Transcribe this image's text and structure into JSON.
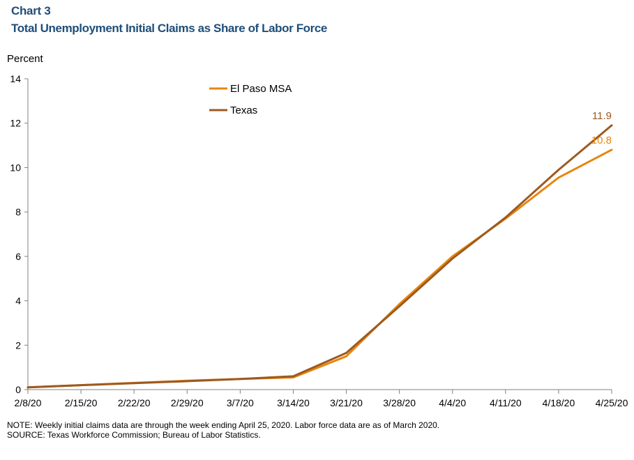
{
  "header": {
    "chart_number": "Chart 3",
    "title": "Total Unemployment Initial Claims as Share of Labor Force"
  },
  "notes": {
    "note": "NOTE: Weekly initial claims data are through the week ending April 25, 2020. Labor force data are as of March 2020.",
    "source": "SOURCE: Texas Workforce Commission; Bureau of Labor Statistics."
  },
  "chart_data": {
    "type": "line",
    "title": "Total Unemployment Initial Claims as Share of Labor Force",
    "xlabel": "",
    "ylabel": "Percent",
    "ylim": [
      0,
      14
    ],
    "yticks": [
      0,
      2,
      4,
      6,
      8,
      10,
      12,
      14
    ],
    "categories": [
      "2/8/20",
      "2/15/20",
      "2/22/20",
      "2/29/20",
      "3/7/20",
      "3/14/20",
      "3/21/20",
      "3/28/20",
      "4/4/20",
      "4/11/20",
      "4/18/20",
      "4/25/20"
    ],
    "grid": false,
    "legend_position": "top-center",
    "series": [
      {
        "name": "El Paso MSA",
        "color": "#e8850f",
        "values": [
          0.1,
          0.2,
          0.3,
          0.4,
          0.48,
          0.55,
          1.5,
          3.85,
          6.0,
          7.7,
          9.55,
          10.8
        ],
        "end_label": "10.8"
      },
      {
        "name": "Texas",
        "color": "#9b5a1f",
        "values": [
          0.1,
          0.2,
          0.29,
          0.38,
          0.48,
          0.6,
          1.65,
          3.75,
          5.9,
          7.75,
          9.9,
          11.9
        ],
        "end_label": "11.9"
      }
    ]
  }
}
